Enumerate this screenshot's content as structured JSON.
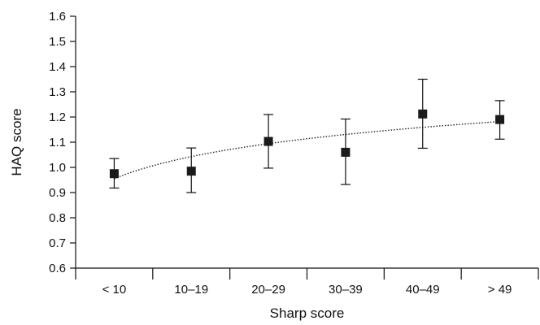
{
  "chart_data": {
    "type": "scatter",
    "title": "",
    "xlabel": "Sharp score",
    "ylabel": "HAQ score",
    "categories": [
      "< 10",
      "10–19",
      "20–29",
      "30–39",
      "40–49",
      "> 49"
    ],
    "series": [
      {
        "values": [
          0.975,
          0.985,
          1.103,
          1.06,
          1.212,
          1.19
        ],
        "error_low": [
          0.918,
          0.9,
          0.997,
          0.932,
          1.076,
          1.112
        ],
        "error_high": [
          1.035,
          1.077,
          1.21,
          1.192,
          1.35,
          1.265
        ],
        "marker": "square",
        "color": "#1a1a1a"
      }
    ],
    "trendline": {
      "type": "logarithmic",
      "style": "dotted",
      "start": 0.955,
      "end": 1.182
    },
    "ylim": [
      0.6,
      1.6
    ],
    "yticks": [
      "0.6",
      "0.7",
      "0.8",
      "0.9",
      "1.0",
      "1.1",
      "1.2",
      "1.3",
      "1.4",
      "1.5",
      "1.6"
    ],
    "grid": false,
    "legend": "none"
  }
}
